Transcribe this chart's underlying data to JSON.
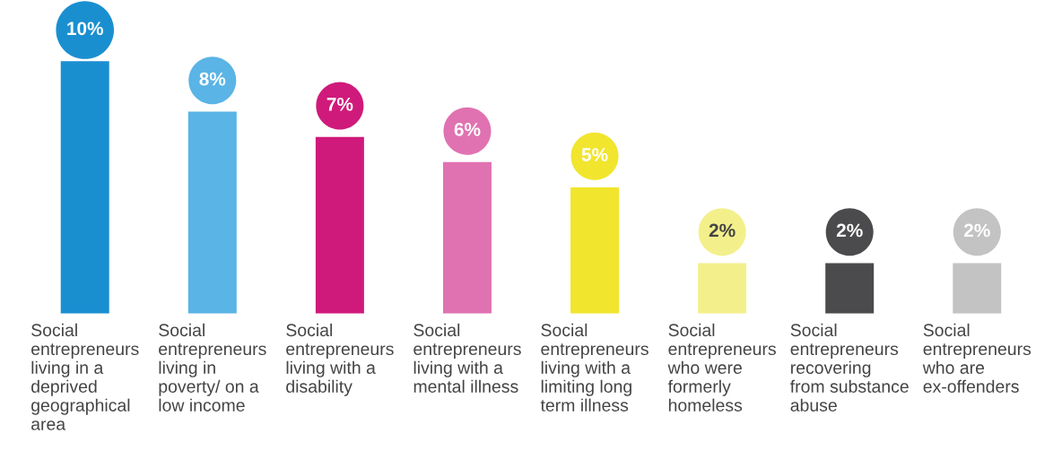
{
  "chart_data": {
    "type": "bar",
    "categories": [
      "Social\nentrepreneurs\nliving in a\ndeprived\ngeographical\narea",
      "Social\nentrepreneurs\nliving in\npoverty/ on a\nlow income",
      "Social\nentrepreneurs\nliving with a\ndisability",
      "Social\nentrepreneurs\nliving with a\nmental illness",
      "Social\nentrepreneurs\nliving with a\nlimiting long\nterm illness",
      "Social\nentrepreneurs\nwho were\nformerly\nhomeless",
      "Social\nentrepreneurs\nrecovering\nfrom substance\nabuse",
      "Social\nentrepreneurs\nwho are\nex-offenders"
    ],
    "values": [
      10,
      8,
      7,
      6,
      5,
      2,
      2,
      2
    ],
    "value_labels": [
      "10%",
      "8%",
      "7%",
      "6%",
      "5%",
      "2%",
      "2%",
      "2%"
    ],
    "colors": [
      "#1a8fd0",
      "#5ab4e5",
      "#cf1a7b",
      "#e072b1",
      "#f2e52e",
      "#f3f08c",
      "#4b4b4d",
      "#c3c3c3"
    ],
    "grid": false,
    "legend": false
  }
}
